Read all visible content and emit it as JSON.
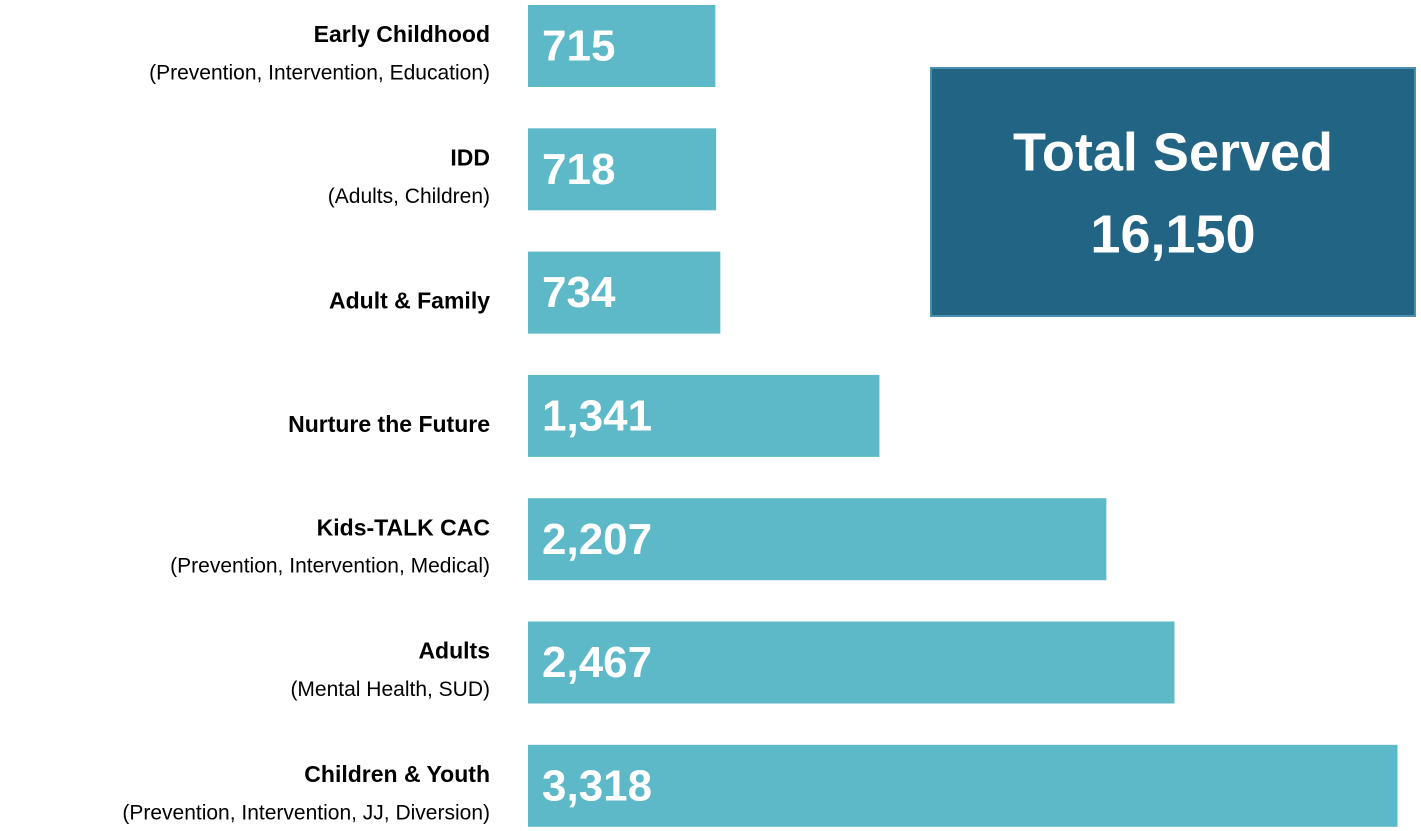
{
  "chart_data": {
    "type": "bar",
    "orientation": "horizontal",
    "categories": [
      "Early Childhood",
      "IDD",
      "Adult & Family",
      "Nurture the Future",
      "Kids-TALK CAC",
      "Adults",
      "Children & Youth"
    ],
    "category_notes": [
      "(Prevention, Intervention, Education)",
      "(Adults, Children)",
      null,
      null,
      "(Prevention, Intervention, Medical)",
      "(Mental Health, SUD)",
      "(Prevention, Intervention, JJ, Diversion)"
    ],
    "values": [
      715,
      718,
      734,
      1341,
      2207,
      2467,
      3318
    ],
    "value_labels": [
      "715",
      "718",
      "734",
      "1,341",
      "2,207",
      "2,467",
      "3,318"
    ],
    "color": "#5db8c8",
    "xlim": [
      0,
      3400
    ],
    "total_title": "Total Served",
    "total_label": "16,150",
    "total_color": "#216484"
  }
}
